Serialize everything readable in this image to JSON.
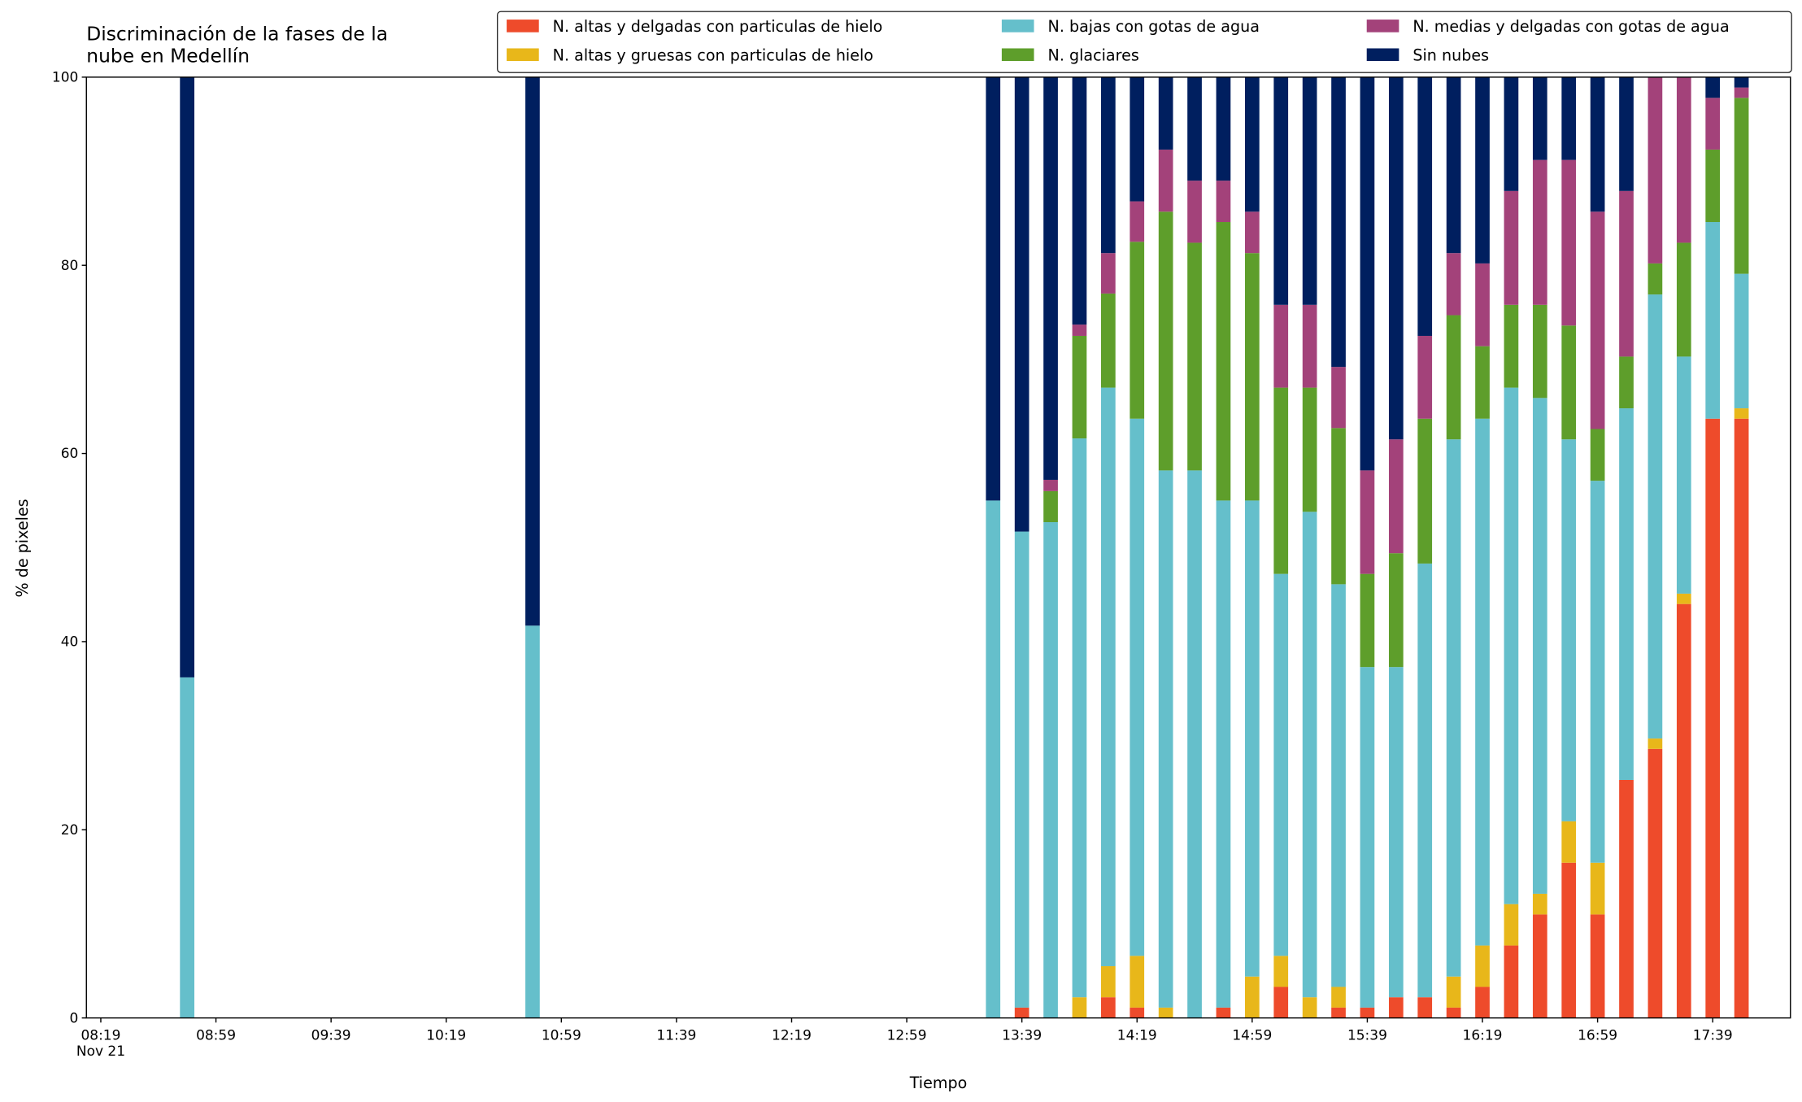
{
  "chart_data": {
    "type": "stacked_bar",
    "title": "Discriminación de la fases de la\nnube en Medellín",
    "xlabel": "Tiempo",
    "ylabel": "% de pixeles",
    "x": [
      "08:49",
      "10:49",
      "13:29",
      "13:39",
      "13:49",
      "13:59",
      "14:09",
      "14:19",
      "14:29",
      "14:39",
      "14:49",
      "14:59",
      "15:09",
      "15:19",
      "15:29",
      "15:39",
      "15:49",
      "15:59",
      "16:09",
      "16:19",
      "16:29",
      "16:39",
      "16:49",
      "16:59",
      "17:09",
      "17:19",
      "17:29",
      "17:39",
      "17:49"
    ],
    "series": [
      {
        "name": "N. altas y delgadas con particulas de hielo",
        "color": "#ee4b2b",
        "values": [
          0,
          0,
          0,
          1.1,
          0,
          0,
          2.2,
          1.1,
          0,
          0,
          1.1,
          0,
          3.3,
          0,
          1.1,
          1.1,
          2.2,
          2.2,
          1.1,
          3.3,
          7.7,
          11,
          16.5,
          11,
          25.3,
          28.6,
          44,
          63.7,
          63.7
        ]
      },
      {
        "name": "N. altas y gruesas con particulas de hielo",
        "color": "#e8b71a",
        "values": [
          0,
          0,
          0,
          0,
          0,
          2.2,
          3.3,
          5.5,
          1.1,
          0,
          0,
          4.4,
          3.3,
          2.2,
          2.2,
          0,
          0,
          0,
          3.3,
          4.4,
          4.4,
          2.2,
          4.4,
          5.5,
          0,
          1.1,
          1.1,
          0,
          1.1
        ]
      },
      {
        "name": "N. bajas con gotas de agua",
        "color": "#65bfcb",
        "values": [
          36.2,
          41.7,
          55,
          50.6,
          52.7,
          59.4,
          61.5,
          57.1,
          57.1,
          58.2,
          53.9,
          50.6,
          40.6,
          51.6,
          42.8,
          36.2,
          35.1,
          46.1,
          57.1,
          56,
          54.9,
          52.7,
          40.6,
          40.6,
          39.5,
          47.2,
          25.2,
          20.9,
          14.3
        ]
      },
      {
        "name": "N. glaciares",
        "color": "#5e9e2b",
        "values": [
          0,
          0,
          0,
          0,
          3.3,
          10.9,
          10,
          18.8,
          27.5,
          24.2,
          29.6,
          26.3,
          19.8,
          13.2,
          16.6,
          9.9,
          12.1,
          15.4,
          13.2,
          7.7,
          8.8,
          9.9,
          12.1,
          5.5,
          5.5,
          3.3,
          12.1,
          7.7,
          18.7
        ]
      },
      {
        "name": "N. medias y delgadas con gotas de agua",
        "color": "#a3427a",
        "values": [
          0,
          0,
          0,
          0,
          1.2,
          1.2,
          4.3,
          4.3,
          6.6,
          6.6,
          4.4,
          4.4,
          8.8,
          8.8,
          6.5,
          11,
          12.1,
          8.8,
          6.6,
          8.8,
          12.1,
          15.4,
          17.6,
          23.1,
          17.6,
          19.8,
          17.6,
          5.5,
          1.1
        ]
      },
      {
        "name": "Sin nubes",
        "color": "#001f5f",
        "values": [
          63.8,
          58.3,
          45,
          48.3,
          42.8,
          26.3,
          18.7,
          13.2,
          7.7,
          11,
          11,
          14.3,
          24.2,
          24.2,
          30.8,
          41.8,
          38.5,
          27.5,
          18.7,
          19.8,
          12.1,
          8.8,
          8.8,
          14.3,
          12.1,
          0,
          0,
          2.2,
          1.1
        ]
      }
    ],
    "xlim": [
      "08:14",
      "18:06"
    ],
    "xticks": [
      {
        "value": "08:19",
        "label": "08:19\nNov 21"
      },
      "08:59",
      "09:39",
      "10:19",
      "10:59",
      "11:39",
      "12:19",
      "12:59",
      "13:39",
      "14:19",
      "14:59",
      "15:39",
      "16:19",
      "16:59",
      "17:39"
    ],
    "ylim": [
      0,
      100
    ],
    "yticks": [
      0,
      20,
      40,
      60,
      80,
      100
    ],
    "grid": false,
    "legend": "upper right"
  }
}
